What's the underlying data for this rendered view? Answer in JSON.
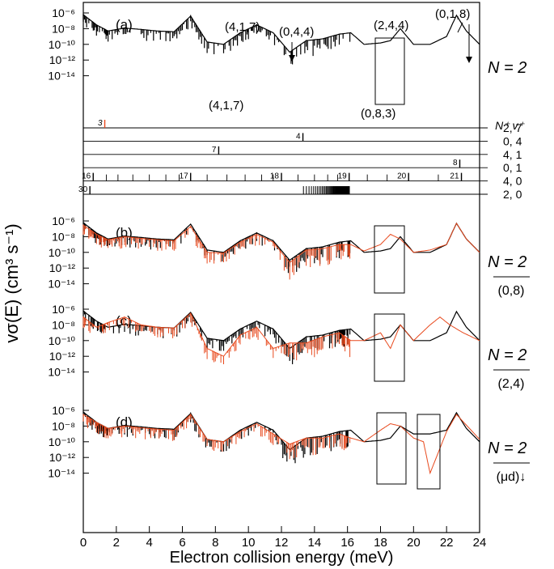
{
  "figure": {
    "xlabel": "Electron collision energy (meV)",
    "ylabel": "vσ(E) (cm³ s⁻¹)",
    "xticks": [
      "0",
      "2",
      "4",
      "6",
      "8",
      "10",
      "12",
      "14",
      "16",
      "18",
      "20",
      "22",
      "24"
    ],
    "xlim": [
      0,
      24
    ],
    "yticks": [
      "10⁻⁶",
      "10⁻⁸",
      "10⁻¹⁰",
      "10⁻¹²",
      "10⁻¹⁴"
    ],
    "colors": {
      "main": "#000000",
      "alt": "#e8491d"
    }
  },
  "panels": [
    {
      "id": "a",
      "label": "(a)",
      "right": "N = 2",
      "right_sub": ""
    },
    {
      "id": "b",
      "label": "(b)",
      "right": "N = 2",
      "right_sub": "(0,8)"
    },
    {
      "id": "c",
      "label": "(c)",
      "right": "N = 2",
      "right_sub": "(2,4)"
    },
    {
      "id": "d",
      "label": "(d)",
      "right": "N = 2",
      "right_sub": "(μd)↓"
    }
  ],
  "annotations": {
    "a1": "(4,1,7)",
    "a2": "(0,4,4)",
    "a3": "(2,4,4)",
    "a4": "(0,1,8)",
    "a5": "(4,1,7)",
    "a6": "(0,8,3)"
  },
  "threshold_diagram": {
    "header": "N⁺ v⁺",
    "rows": [
      {
        "label": "2, 7",
        "ticks": [
          {
            "x": 1.3,
            "t": "3"
          }
        ]
      },
      {
        "label": "0, 4",
        "ticks": [
          {
            "x": 13.3,
            "t": "4"
          }
        ]
      },
      {
        "label": "4, 1",
        "ticks": [
          {
            "x": 8.2,
            "t": "7"
          }
        ]
      },
      {
        "label": "0, 1",
        "ticks": [
          {
            "x": 22.8,
            "t": "8"
          }
        ]
      },
      {
        "label": "4, 0",
        "ticks": [
          {
            "x": 0.6,
            "t": "16"
          },
          {
            "x": 6.5,
            "t": "17"
          },
          {
            "x": 12.0,
            "t": "18"
          },
          {
            "x": 16.1,
            "t": "19"
          },
          {
            "x": 19.7,
            "t": "20"
          },
          {
            "x": 22.9,
            "t": "21"
          }
        ]
      },
      {
        "label": "2, 0",
        "ticks": [
          {
            "x": 0.4,
            "t": "30"
          }
        ]
      }
    ]
  },
  "chart_data": {
    "type": "line",
    "title": "",
    "xlabel": "Electron collision energy (meV)",
    "ylabel": "vσ(E) (cm³ s⁻¹)",
    "xlim": [
      0,
      24
    ],
    "ylim_log10": [
      -15,
      -5
    ],
    "yscale": "log",
    "grid": false,
    "series": [
      {
        "panel": "a",
        "color": "#000000",
        "x": [
          0,
          0.8,
          1.5,
          2.5,
          3.5,
          4.5,
          5.5,
          6.5,
          7.5,
          8.5,
          9.5,
          10.5,
          11.5,
          12.5,
          13.5,
          14.5,
          15.5,
          16.2,
          17.0,
          18.0,
          18.6,
          19.2,
          20.0,
          21.0,
          22.0,
          22.6,
          23.2,
          24.0
        ],
        "y": [
          6e-07,
          3e-08,
          5e-09,
          1.2e-08,
          8e-09,
          5e-09,
          4e-09,
          4e-07,
          2e-10,
          1e-10,
          3e-09,
          3e-08,
          3e-09,
          1e-11,
          3e-10,
          5e-10,
          2e-09,
          3e-09,
          1e-10,
          1.5e-10,
          3e-10,
          1e-08,
          1e-10,
          1e-10,
          1e-09,
          5e-07,
          5e-09,
          1e-10
        ]
      },
      {
        "panel": "b",
        "color": "#000000",
        "x": [
          0,
          0.8,
          1.5,
          2.5,
          3.5,
          4.5,
          5.5,
          6.5,
          7.5,
          8.5,
          9.5,
          10.5,
          11.5,
          12.5,
          13.5,
          14.5,
          15.5,
          16.2,
          17.0,
          18.0,
          18.6,
          19.2,
          20.0,
          21.0,
          22.0,
          22.6,
          23.2,
          24.0
        ],
        "y": [
          6e-07,
          3e-08,
          5e-09,
          1.2e-08,
          8e-09,
          5e-09,
          4e-09,
          4e-07,
          2e-10,
          1e-10,
          3e-09,
          3e-08,
          3e-09,
          1e-11,
          3e-10,
          5e-10,
          2e-09,
          3e-09,
          1e-10,
          1.5e-10,
          3e-10,
          1e-08,
          1e-10,
          1e-10,
          1e-09,
          5e-07,
          5e-09,
          1e-10
        ]
      },
      {
        "panel": "b",
        "color": "#e8491d",
        "x": [
          0,
          0.8,
          1.5,
          2.5,
          3.5,
          4.5,
          5.5,
          6.5,
          7.5,
          8.5,
          9.5,
          10.5,
          11.5,
          12.5,
          13.5,
          14.5,
          15.5,
          16.2,
          17.0,
          18.0,
          18.6,
          19.2,
          20.0,
          21.0,
          22.0,
          22.6,
          23.2,
          24.0
        ],
        "y": [
          3e-07,
          2e-08,
          4e-09,
          1e-08,
          6e-09,
          4e-09,
          3e-09,
          2e-07,
          1e-10,
          8e-11,
          2e-09,
          2e-08,
          2e-09,
          5e-12,
          2e-10,
          3e-10,
          1e-09,
          1e-09,
          1.5e-10,
          1e-09,
          2e-08,
          5e-09,
          1e-10,
          2e-10,
          1e-09,
          5e-07,
          5e-09,
          1e-10
        ]
      },
      {
        "panel": "c",
        "color": "#000000",
        "x": [
          0,
          0.8,
          1.5,
          2.5,
          3.5,
          4.5,
          5.5,
          6.5,
          7.5,
          8.5,
          9.5,
          10.5,
          11.5,
          12.5,
          13.5,
          14.5,
          15.5,
          16.2,
          17.0,
          18.0,
          18.6,
          19.2,
          20.0,
          21.0,
          22.0,
          22.6,
          23.2,
          24.0
        ],
        "y": [
          6e-07,
          3e-08,
          5e-09,
          1.2e-08,
          8e-09,
          5e-09,
          4e-09,
          4e-07,
          2e-10,
          1e-10,
          3e-09,
          3e-08,
          3e-09,
          1e-11,
          3e-10,
          5e-10,
          2e-09,
          3e-09,
          1e-10,
          1.5e-10,
          3e-10,
          1e-08,
          1e-10,
          1e-10,
          1e-09,
          5e-07,
          5e-09,
          1e-10
        ]
      },
      {
        "panel": "c",
        "color": "#e8491d",
        "x": [
          0,
          0.8,
          1.5,
          2.5,
          3.5,
          4.5,
          5.5,
          6.5,
          7.5,
          8.5,
          9.5,
          10.5,
          11.5,
          12.5,
          13.5,
          14.5,
          15.5,
          16.2,
          17.0,
          18.0,
          18.6,
          19.2,
          20.0,
          21.0,
          21.6,
          22.2,
          23.0,
          24.0
        ],
        "y": [
          1e-07,
          5e-09,
          2e-08,
          1e-07,
          1e-08,
          5e-09,
          4e-09,
          3e-07,
          1e-11,
          1e-12,
          5e-10,
          5e-09,
          1e-11,
          5e-11,
          5e-11,
          3e-10,
          1e-09,
          1e-10,
          1e-10,
          1e-09,
          1e-11,
          1e-08,
          1e-10,
          1e-08,
          1e-07,
          1e-08,
          1e-09,
          1e-10
        ]
      },
      {
        "panel": "d",
        "color": "#000000",
        "x": [
          0,
          0.8,
          1.5,
          2.5,
          3.5,
          4.5,
          5.5,
          6.5,
          7.5,
          8.5,
          9.5,
          10.5,
          11.5,
          12.5,
          13.5,
          14.5,
          15.5,
          16.2,
          17.0,
          18.0,
          18.6,
          19.2,
          20.0,
          21.0,
          22.0,
          22.6,
          23.2,
          24.0
        ],
        "y": [
          6e-07,
          3e-08,
          5e-09,
          1.2e-08,
          8e-09,
          5e-09,
          4e-09,
          4e-07,
          2e-10,
          1e-10,
          3e-09,
          3e-08,
          3e-09,
          1e-11,
          3e-10,
          5e-10,
          2e-09,
          3e-09,
          1e-10,
          1.5e-10,
          3e-10,
          1e-08,
          1e-09,
          1e-09,
          3e-09,
          5e-07,
          5e-09,
          1e-10
        ]
      },
      {
        "panel": "d",
        "color": "#e8491d",
        "x": [
          0,
          0.8,
          1.5,
          2.5,
          3.5,
          4.5,
          5.5,
          6.5,
          7.5,
          8.5,
          9.5,
          10.5,
          11.5,
          12.5,
          13.5,
          14.5,
          15.5,
          16.2,
          17.0,
          18.0,
          18.6,
          19.2,
          20.0,
          20.6,
          21.0,
          22.0,
          22.6,
          24.0
        ],
        "y": [
          3e-07,
          3e-08,
          5e-09,
          1e-08,
          6e-09,
          4e-09,
          3e-09,
          3e-07,
          2e-10,
          1e-10,
          2e-09,
          2e-08,
          1e-09,
          5e-11,
          3e-10,
          3e-10,
          1e-09,
          3e-10,
          1e-10,
          3e-09,
          2e-08,
          1e-08,
          3e-10,
          1e-10,
          1e-14,
          2e-09,
          3e-07,
          2e-10
        ]
      }
    ]
  }
}
